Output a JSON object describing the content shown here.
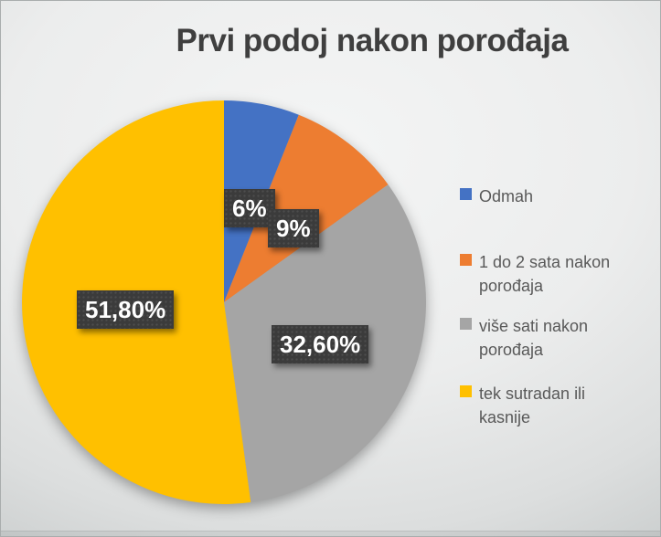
{
  "title": "Prvi podoj nakon porođaja",
  "colors": {
    "title_text": "#3f3f3f",
    "legend_text": "#595959",
    "label_box": "#3b3b3b",
    "label_text": "#ffffff",
    "background_center": "#f4f5f5",
    "background_edge": "#aeb2b2"
  },
  "chart_data": {
    "type": "pie",
    "title": "Prvi podoj nakon porođaja",
    "legend_position": "right",
    "start_angle_deg": 0,
    "direction": "clockwise",
    "slices": [
      {
        "label": "Odmah",
        "value": 6,
        "display": "6%",
        "color": "#4472c4"
      },
      {
        "label": "1 do 2 sata nakon porođaja",
        "value": 9,
        "display": "9%",
        "color": "#ed7d31"
      },
      {
        "label": "više sati nakon porođaja",
        "value": 32.6,
        "display": "32,60%",
        "color": "#a5a5a5"
      },
      {
        "label": "tek sutradan ili kasnije",
        "value": 51.8,
        "display": "51,80%",
        "color": "#ffc000"
      }
    ]
  },
  "data_labels": [
    {
      "text": "6%"
    },
    {
      "text": "9%"
    },
    {
      "text": "51,80%"
    },
    {
      "text": "32,60%"
    }
  ]
}
